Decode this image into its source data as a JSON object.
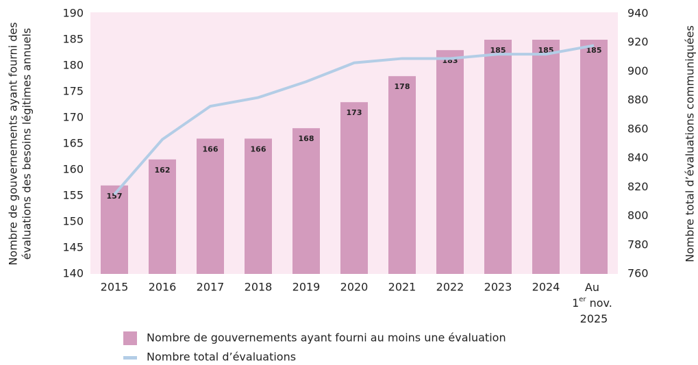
{
  "chart_data": {
    "type": "bar_line",
    "categories": [
      "2015",
      "2016",
      "2017",
      "2018",
      "2019",
      "2020",
      "2021",
      "2022",
      "2023",
      "2024",
      "Au 1er nov. 2025"
    ],
    "series": [
      {
        "name": "Nombre de gouvernements ayant fourni au moins une évaluation",
        "color": "#d39bbd",
        "type": "bar",
        "values": [
          157,
          162,
          166,
          166,
          168,
          173,
          178,
          183,
          185,
          185,
          185
        ]
      },
      {
        "name": "Nombre total d’évaluations",
        "color": "#b3cde6",
        "type": "line",
        "axis": "y2",
        "values": [
          815,
          853,
          876,
          882,
          893,
          906,
          909,
          909,
          912,
          912,
          918
        ]
      }
    ],
    "ylabel": [
      "Nombre de gouvernements ayant fourni des",
      "évaluations des besoins légitimes annuels"
    ],
    "y2label": "Nombre total d’évaluations communiquées",
    "ylim": [
      140,
      190
    ],
    "yticks": [
      140,
      145,
      150,
      155,
      160,
      165,
      170,
      175,
      180,
      185,
      190
    ],
    "y2lim": [
      760,
      940
    ],
    "y2ticks": [
      760,
      780,
      800,
      820,
      840,
      860,
      880,
      900,
      920,
      940
    ],
    "background": "#fbe9f2"
  }
}
